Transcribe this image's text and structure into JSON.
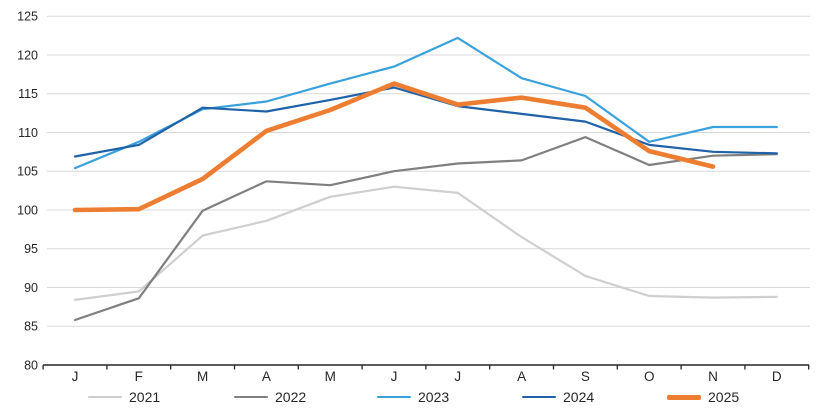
{
  "chart_data": {
    "type": "line",
    "title": "",
    "xlabel": "",
    "ylabel": "",
    "x_axis": {
      "categories": [
        "J",
        "F",
        "M",
        "A",
        "M",
        "J",
        "J",
        "A",
        "S",
        "O",
        "N",
        "D"
      ]
    },
    "y_axis": {
      "min": 80,
      "max": 125,
      "step": 5,
      "tick_labels": [
        "80",
        "85",
        "90",
        "95",
        "100",
        "105",
        "110",
        "115",
        "120",
        "125"
      ]
    },
    "grid": "horizontal-only",
    "legend_position": "bottom",
    "colors": {
      "gridline": "#d9d9d9",
      "axis": "#262626",
      "text": "#262626"
    },
    "series": [
      {
        "name": "2021",
        "color": "#cfcfcf",
        "width": 2.2,
        "values": [
          88.4,
          89.5,
          96.7,
          98.6,
          101.7,
          103.0,
          102.2,
          96.5,
          91.5,
          88.9,
          88.7,
          88.8
        ]
      },
      {
        "name": "2022",
        "color": "#7f7f7f",
        "width": 2.2,
        "values": [
          85.8,
          88.6,
          99.9,
          103.7,
          103.2,
          105.0,
          106.0,
          106.4,
          109.4,
          105.8,
          107.0,
          107.2
        ]
      },
      {
        "name": "2023",
        "color": "#39a1dc",
        "width": 2.2,
        "values": [
          105.4,
          108.8,
          113.0,
          114.0,
          116.3,
          118.5,
          122.2,
          117.0,
          114.7,
          108.8,
          110.7,
          110.7
        ]
      },
      {
        "name": "2024",
        "color": "#1f62a8",
        "width": 2.2,
        "values": [
          106.9,
          108.4,
          113.2,
          112.7,
          114.2,
          115.8,
          113.4,
          112.4,
          111.4,
          108.4,
          107.5,
          107.3
        ]
      },
      {
        "name": "2025",
        "color": "#ed7d31",
        "width": 4.6,
        "values": [
          100.0,
          100.1,
          104.0,
          110.2,
          112.9,
          116.3,
          113.6,
          114.5,
          113.2,
          107.6,
          105.6
        ]
      }
    ]
  }
}
